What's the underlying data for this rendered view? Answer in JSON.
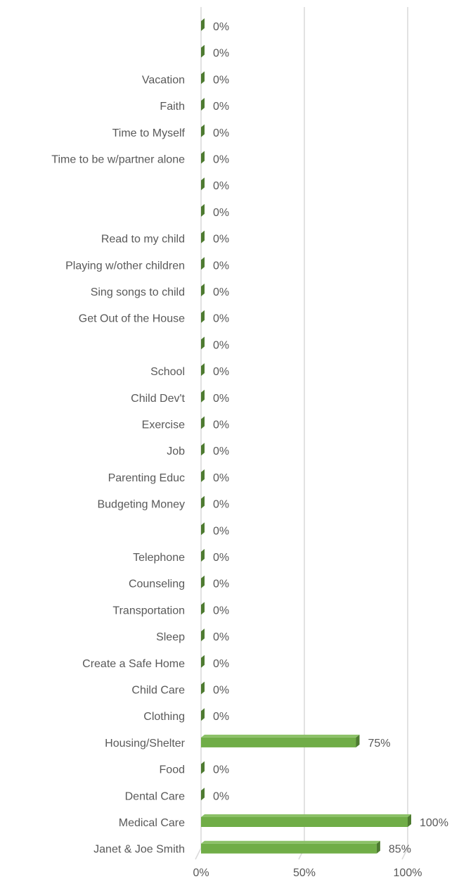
{
  "chart_data": {
    "type": "bar",
    "orientation": "horizontal",
    "style": "3d-bar",
    "bar_color": "#70ad47",
    "bar_side_color": "#4e7b31",
    "grid_color": "#d9d9d9",
    "text_color": "#595959",
    "grid": true,
    "legend": "none",
    "title": "",
    "xlabel": "",
    "ylabel": "",
    "xlim": [
      0,
      1
    ],
    "x_ticks": [
      0,
      0.5,
      1
    ],
    "x_tick_labels": [
      "0%",
      "50%",
      "100%"
    ],
    "categories": [
      "",
      "",
      "Vacation",
      "Faith",
      "Time to Myself",
      "Time to be w/partner alone",
      "",
      "",
      "Read to my child",
      "Playing w/other children",
      "Sing songs to child",
      "Get Out of the House",
      "",
      "School",
      "Child Dev't",
      "Exercise",
      "Job",
      "Parenting Educ",
      "Budgeting Money",
      "",
      "Telephone",
      "Counseling",
      "Transportation",
      "Sleep",
      "Create a Safe Home",
      "Child Care",
      "Clothing",
      "Housing/Shelter",
      "Food",
      "Dental Care",
      "Medical Care",
      "Janet & Joe Smith"
    ],
    "values": [
      0,
      0,
      0,
      0,
      0,
      0,
      0,
      0,
      0,
      0,
      0,
      0,
      0,
      0,
      0,
      0,
      0,
      0,
      0,
      0,
      0,
      0,
      0,
      0,
      0,
      0,
      0,
      0.75,
      0,
      0,
      1,
      0.85
    ],
    "data_labels": [
      "0%",
      "0%",
      "0%",
      "0%",
      "0%",
      "0%",
      "0%",
      "0%",
      "0%",
      "0%",
      "0%",
      "0%",
      "0%",
      "0%",
      "0%",
      "0%",
      "0%",
      "0%",
      "0%",
      "0%",
      "0%",
      "0%",
      "0%",
      "0%",
      "0%",
      "0%",
      "0%",
      "75%",
      "0%",
      "0%",
      "100%",
      "85%"
    ]
  }
}
